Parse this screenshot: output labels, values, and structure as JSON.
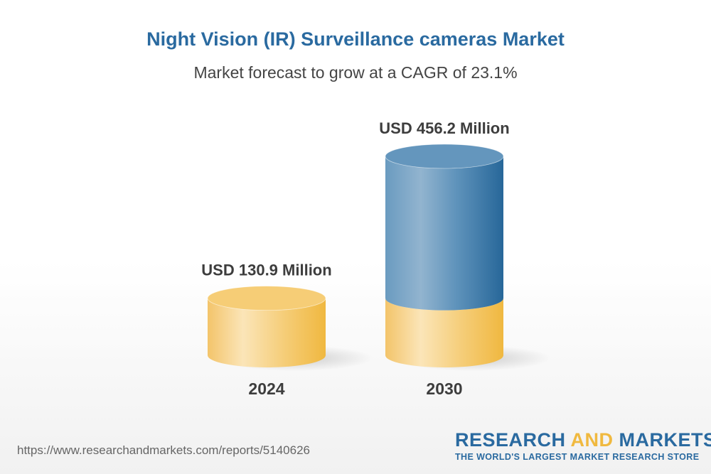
{
  "chart_data": {
    "type": "bar",
    "style": "3d-cylinder",
    "title": "Night Vision (IR) Surveillance cameras Market",
    "subtitle": "Market forecast to grow at a CAGR of 23.1%",
    "categories": [
      "2024",
      "2030"
    ],
    "values": [
      130.9,
      456.2
    ],
    "value_labels": [
      "USD 130.9 Million",
      "USD 456.2 Million"
    ],
    "unit": "USD Million",
    "colors": {
      "base": "#f3c05a",
      "growth": "#2d6b9e"
    },
    "grid": false
  },
  "footer": {
    "url": "https://www.researchandmarkets.com/reports/5140626",
    "logo_part1": "RESEARCH ",
    "logo_part2": "AND",
    "logo_part3": " MARKETS",
    "logo_tagline": "THE WORLD'S LARGEST MARKET RESEARCH STORE"
  }
}
